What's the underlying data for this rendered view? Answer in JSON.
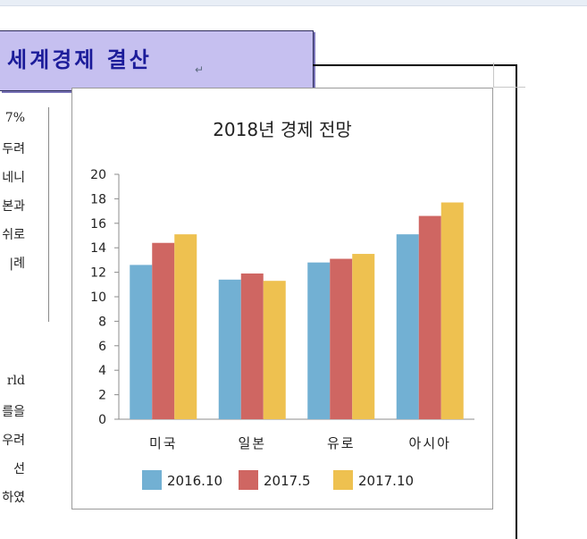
{
  "doc": {
    "banner_title": "세계경제 결산",
    "para_mark": "↵",
    "left_fragments": [
      "7%",
      "두려",
      "네니",
      "본과",
      "쉬로",
      "|례",
      "rld",
      "를을",
      "우려",
      "선",
      "하였"
    ]
  },
  "chart_data": {
    "type": "bar",
    "title": "2018년 경제 전망",
    "categories": [
      "미국",
      "일본",
      "유로",
      "아시아"
    ],
    "series": [
      {
        "name": "2016.10",
        "values": [
          12.6,
          11.4,
          12.8,
          15.1
        ],
        "color": "#72b0d3"
      },
      {
        "name": "2017.5",
        "values": [
          14.4,
          11.9,
          13.1,
          16.6
        ],
        "color": "#cf6662"
      },
      {
        "name": "2017.10",
        "values": [
          15.1,
          11.3,
          13.5,
          17.7
        ],
        "color": "#eec150"
      }
    ],
    "yticks": [
      0,
      2,
      4,
      6,
      8,
      10,
      12,
      14,
      16,
      18,
      20
    ],
    "ylim": [
      0,
      20
    ],
    "grid": false,
    "legend_position": "bottom"
  }
}
